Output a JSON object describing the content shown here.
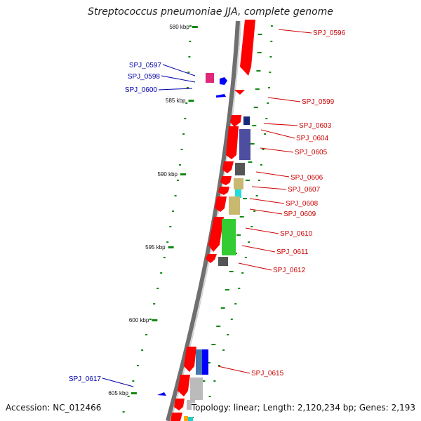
{
  "title": "Streptococcus pneumoniae JJA, complete genome",
  "accession": "Accession: NC_012466",
  "summary": "Topology: linear; Length: 2,120,234 bp; Genes: 2,193",
  "scale": {
    "ticks": [
      "580 kbp",
      "585 kbp",
      "590 kbp",
      "595 kbp",
      "600 kbp",
      "605 kbp"
    ]
  },
  "colors": {
    "backbone": "#8a8a8a",
    "red_gene": "#ff0000",
    "blue_gene": "#0000ff",
    "ticks": "#118811",
    "label_red": "#cc0000",
    "label_blue": "#0000aa"
  },
  "genes": {
    "right": [
      "SPJ_0596",
      "SPJ_0599",
      "SPJ_0603",
      "SPJ_0604",
      "SPJ_0605",
      "SPJ_0606",
      "SPJ_0607",
      "SPJ_0608",
      "SPJ_0609",
      "SPJ_0610",
      "SPJ_0611",
      "SPJ_0612",
      "SPJ_0615"
    ],
    "left": [
      "SPJ_0597",
      "SPJ_0598",
      "SPJ_0600",
      "SPJ_0617"
    ]
  }
}
